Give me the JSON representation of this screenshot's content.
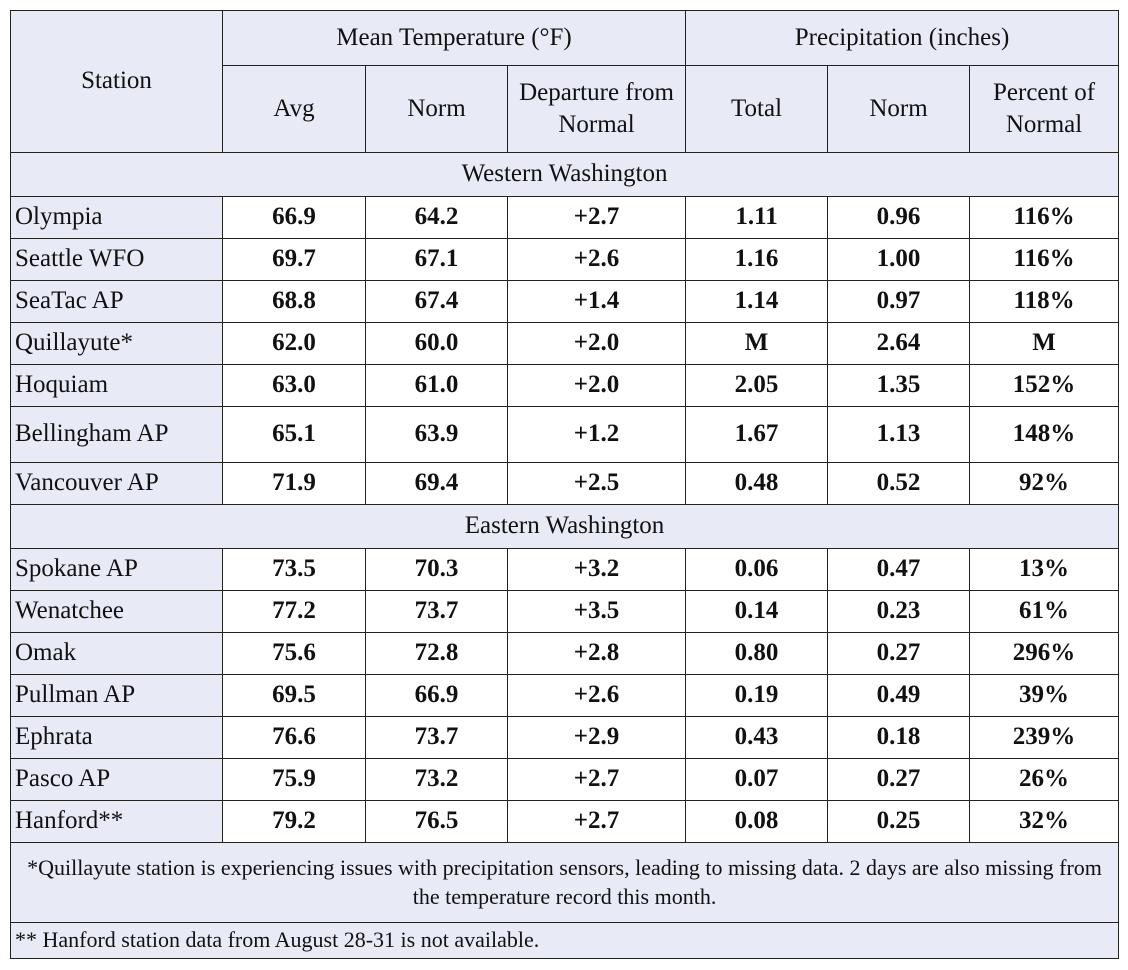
{
  "table": {
    "header": {
      "station": "Station",
      "groups": [
        "Mean Temperature (°F)",
        "Precipitation (inches)"
      ],
      "columns": [
        "Avg",
        "Norm",
        "Departure from Normal",
        "Total",
        "Norm",
        "Percent of Normal"
      ]
    },
    "sections": [
      {
        "title": "Western Washington",
        "rows": [
          [
            "Olympia",
            "66.9",
            "64.2",
            "+2.7",
            "1.11",
            "0.96",
            "116%"
          ],
          [
            "Seattle WFO",
            "69.7",
            "67.1",
            "+2.6",
            "1.16",
            "1.00",
            "116%"
          ],
          [
            "SeaTac AP",
            "68.8",
            "67.4",
            "+1.4",
            "1.14",
            "0.97",
            "118%"
          ],
          [
            "Quillayute*",
            "62.0",
            "60.0",
            "+2.0",
            "M",
            "2.64",
            "M"
          ],
          [
            "Hoquiam",
            "63.0",
            "61.0",
            "+2.0",
            "2.05",
            "1.35",
            "152%"
          ],
          [
            "Bellingham AP",
            "65.1",
            "63.9",
            "+1.2",
            "1.67",
            "1.13",
            "148%"
          ],
          [
            "Vancouver AP",
            "71.9",
            "69.4",
            "+2.5",
            "0.48",
            "0.52",
            "92%"
          ]
        ]
      },
      {
        "title": "Eastern Washington",
        "rows": [
          [
            "Spokane AP",
            "73.5",
            "70.3",
            "+3.2",
            "0.06",
            "0.47",
            "13%"
          ],
          [
            "Wenatchee",
            "77.2",
            "73.7",
            "+3.5",
            "0.14",
            "0.23",
            "61%"
          ],
          [
            "Omak",
            "75.6",
            "72.8",
            "+2.8",
            "0.80",
            "0.27",
            "296%"
          ],
          [
            "Pullman AP",
            "69.5",
            "66.9",
            "+2.6",
            "0.19",
            "0.49",
            "39%"
          ],
          [
            "Ephrata",
            "76.6",
            "73.7",
            "+2.9",
            "0.43",
            "0.18",
            "239%"
          ],
          [
            "Pasco AP",
            "75.9",
            "73.2",
            "+2.7",
            "0.07",
            "0.27",
            "26%"
          ],
          [
            "Hanford**",
            "79.2",
            "76.5",
            "+2.7",
            "0.08",
            "0.25",
            "32%"
          ]
        ]
      }
    ],
    "footnotes": [
      "*Quillayute station is experiencing issues with precipitation sensors, leading to missing data. 2 days are also missing from the temperature record this month.",
      "** Hanford station data from August 28-31 is not available."
    ]
  }
}
